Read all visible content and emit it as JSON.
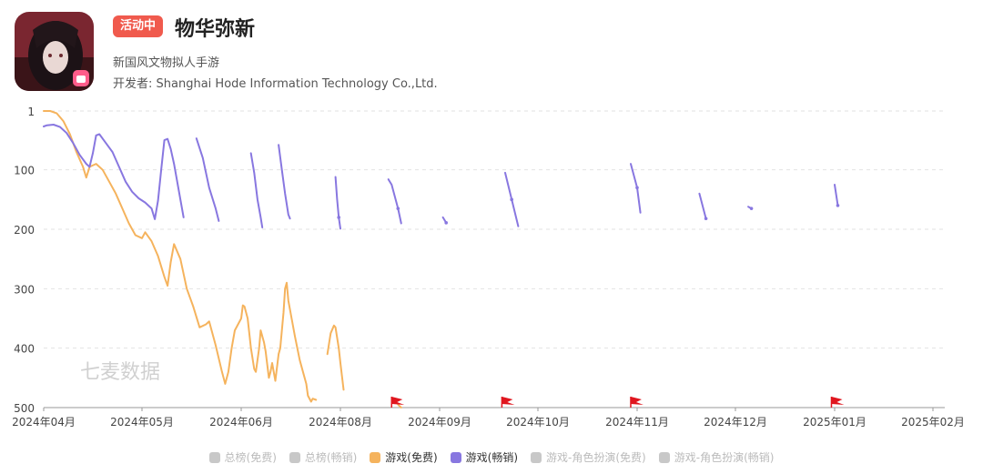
{
  "app": {
    "badge": "活动中",
    "title": "物华弥新",
    "subtitle": "新国风文物拟人手游",
    "developer_label": "开发者:",
    "developer_name": "Shanghai Hode Information Technology Co.,Ltd.",
    "icon": "app-icon-character-portrait"
  },
  "watermark": "七麦数据",
  "colors": {
    "free": "#f5b35d",
    "grossing": "#8877e0",
    "inactive": "#c8c8c8",
    "flag": "#e0161f",
    "badge": "#f05a4d"
  },
  "legend": [
    {
      "label": "总榜(免费)",
      "active": false,
      "color": "#c8c8c8"
    },
    {
      "label": "总榜(畅销)",
      "active": false,
      "color": "#c8c8c8"
    },
    {
      "label": "游戏(免费)",
      "active": true,
      "color": "#f5b35d"
    },
    {
      "label": "游戏(畅销)",
      "active": true,
      "color": "#8877e0"
    },
    {
      "label": "游戏-角色扮演(免费)",
      "active": false,
      "color": "#c8c8c8"
    },
    {
      "label": "游戏-角色扮演(畅销)",
      "active": false,
      "color": "#c8c8c8"
    }
  ],
  "chart_data": {
    "type": "line",
    "y_reversed": true,
    "ylim": [
      1,
      500
    ],
    "yticks": [
      "1",
      "100",
      "200",
      "300",
      "400",
      "500"
    ],
    "ytick_values": [
      1,
      100,
      200,
      300,
      400,
      500
    ],
    "xticks": [
      "2024年04月",
      "2024年05月",
      "2024年06月",
      "2024年08月",
      "2024年09月",
      "2024年10月",
      "2024年11月",
      "2024年12月",
      "2025年01月",
      "2025年02月"
    ],
    "xtick_dates": [
      "2024-04-01",
      "2024-05-01",
      "2024-06-01",
      "2024-08-01",
      "2024-09-01",
      "2024-10-01",
      "2024-11-01",
      "2024-12-01",
      "2025-01-01",
      "2025-02-01"
    ],
    "grid": true,
    "flags": [
      "2024-08-17",
      "2024-09-20",
      "2024-10-30",
      "2024-12-31"
    ],
    "series": [
      {
        "name": "游戏(免费)",
        "color": "#f5b35d",
        "segments": [
          [
            [
              "2024-04-01",
              1
            ],
            [
              "2024-04-03",
              1
            ],
            [
              "2024-04-05",
              5
            ],
            [
              "2024-04-07",
              18
            ],
            [
              "2024-04-09",
              40
            ],
            [
              "2024-04-11",
              70
            ],
            [
              "2024-04-13",
              95
            ],
            [
              "2024-04-14",
              113
            ],
            [
              "2024-04-15",
              95
            ],
            [
              "2024-04-17",
              90
            ],
            [
              "2024-04-19",
              100
            ],
            [
              "2024-04-21",
              120
            ],
            [
              "2024-04-23",
              140
            ],
            [
              "2024-04-25",
              165
            ],
            [
              "2024-04-27",
              190
            ],
            [
              "2024-04-29",
              210
            ],
            [
              "2024-05-01",
              215
            ],
            [
              "2024-05-02",
              205
            ],
            [
              "2024-05-04",
              220
            ],
            [
              "2024-05-06",
              245
            ],
            [
              "2024-05-08",
              280
            ],
            [
              "2024-05-09",
              295
            ],
            [
              "2024-05-10",
              255
            ],
            [
              "2024-05-11",
              225
            ],
            [
              "2024-05-13",
              250
            ],
            [
              "2024-05-15",
              300
            ],
            [
              "2024-05-17",
              330
            ],
            [
              "2024-05-19",
              365
            ],
            [
              "2024-05-21",
              360
            ],
            [
              "2024-05-22",
              355
            ],
            [
              "2024-05-24",
              395
            ],
            [
              "2024-05-26",
              440
            ],
            [
              "2024-05-27",
              460
            ],
            [
              "2024-05-28",
              440
            ],
            [
              "2024-05-29",
              400
            ],
            [
              "2024-05-30",
              370
            ],
            [
              "2024-06-01",
              350
            ],
            [
              "2024-06-02",
              328
            ],
            [
              "2024-06-03",
              330
            ],
            [
              "2024-06-05",
              350
            ],
            [
              "2024-06-07",
              400
            ],
            [
              "2024-06-09",
              435
            ],
            [
              "2024-06-10",
              440
            ],
            [
              "2024-06-12",
              400
            ],
            [
              "2024-06-13",
              370
            ],
            [
              "2024-06-15",
              390
            ],
            [
              "2024-06-16",
              405
            ],
            [
              "2024-06-18",
              450
            ],
            [
              "2024-06-19",
              440
            ],
            [
              "2024-06-20",
              425
            ],
            [
              "2024-06-22",
              455
            ],
            [
              "2024-06-24",
              410
            ],
            [
              "2024-06-25",
              400
            ],
            [
              "2024-06-27",
              340
            ],
            [
              "2024-06-28",
              300
            ],
            [
              "2024-06-29",
              290
            ],
            [
              "2024-06-30",
              320
            ],
            [
              "2024-07-02",
              350
            ],
            [
              "2024-07-04",
              380
            ],
            [
              "2024-07-07",
              420
            ],
            [
              "2024-07-09",
              440
            ],
            [
              "2024-07-11",
              460
            ],
            [
              "2024-07-12",
              480
            ],
            [
              "2024-07-14",
              490
            ],
            [
              "2024-07-15",
              485
            ],
            [
              "2024-07-17",
              487
            ]
          ],
          [
            [
              "2024-07-24",
              410
            ],
            [
              "2024-07-26",
              375
            ],
            [
              "2024-07-28",
              362
            ],
            [
              "2024-07-29",
              365
            ],
            [
              "2024-07-31",
              400
            ],
            [
              "2024-08-01",
              425
            ],
            [
              "2024-08-02",
              470
            ]
          ],
          [
            [
              "2024-08-19",
              495
            ],
            [
              "2024-08-20",
              500
            ]
          ]
        ]
      },
      {
        "name": "游戏(畅销)",
        "color": "#8877e0",
        "segments": [
          [
            [
              "2024-04-01",
              27
            ],
            [
              "2024-04-02",
              25
            ],
            [
              "2024-04-04",
              24
            ],
            [
              "2024-04-06",
              28
            ],
            [
              "2024-04-08",
              38
            ],
            [
              "2024-04-10",
              55
            ],
            [
              "2024-04-12",
              75
            ],
            [
              "2024-04-14",
              90
            ],
            [
              "2024-04-15",
              95
            ],
            [
              "2024-04-16",
              72
            ],
            [
              "2024-04-17",
              42
            ],
            [
              "2024-04-18",
              40
            ],
            [
              "2024-04-20",
              55
            ],
            [
              "2024-04-22",
              70
            ],
            [
              "2024-04-24",
              95
            ],
            [
              "2024-04-26",
              120
            ],
            [
              "2024-04-28",
              137
            ],
            [
              "2024-04-30",
              148
            ],
            [
              "2024-05-02",
              155
            ],
            [
              "2024-05-04",
              165
            ],
            [
              "2024-05-05",
              183
            ],
            [
              "2024-05-06",
              152
            ],
            [
              "2024-05-07",
              100
            ],
            [
              "2024-05-08",
              50
            ],
            [
              "2024-05-09",
              48
            ],
            [
              "2024-05-10",
              65
            ],
            [
              "2024-05-11",
              90
            ],
            [
              "2024-05-13",
              150
            ],
            [
              "2024-05-14",
              180
            ]
          ],
          [
            [
              "2024-05-18",
              47
            ],
            [
              "2024-05-20",
              80
            ],
            [
              "2024-05-22",
              130
            ],
            [
              "2024-05-24",
              165
            ],
            [
              "2024-05-25",
              186
            ]
          ],
          [
            [
              "2024-06-07",
              72
            ],
            [
              "2024-06-09",
              105
            ],
            [
              "2024-06-11",
              150
            ],
            [
              "2024-06-13",
              180
            ],
            [
              "2024-06-14",
              197
            ]
          ],
          [
            [
              "2024-06-24",
              58
            ],
            [
              "2024-06-26",
              100
            ],
            [
              "2024-06-28",
              140
            ],
            [
              "2024-06-30",
              175
            ],
            [
              "2024-07-01",
              182
            ]
          ],
          [
            [
              "2024-07-29",
              112
            ],
            [
              "2024-07-30",
              150
            ],
            [
              "2024-07-31",
              180
            ],
            [
              "2024-08-01",
              199
            ]
          ],
          [
            [
              "2024-08-16",
              116
            ],
            [
              "2024-08-17",
              125
            ],
            [
              "2024-08-19",
              165
            ],
            [
              "2024-08-20",
              190
            ]
          ],
          [
            [
              "2024-09-02",
              180
            ],
            [
              "2024-09-03",
              189
            ]
          ],
          [
            [
              "2024-09-21",
              105
            ],
            [
              "2024-09-23",
              150
            ],
            [
              "2024-09-25",
              195
            ]
          ],
          [
            [
              "2024-10-30",
              90
            ],
            [
              "2024-11-01",
              130
            ],
            [
              "2024-11-02",
              172
            ]
          ],
          [
            [
              "2024-11-20",
              140
            ],
            [
              "2024-11-22",
              182
            ]
          ],
          [
            [
              "2024-12-05",
              162
            ],
            [
              "2024-12-06",
              165
            ]
          ],
          [
            [
              "2025-01-01",
              125
            ],
            [
              "2025-01-02",
              160
            ]
          ]
        ]
      }
    ]
  }
}
